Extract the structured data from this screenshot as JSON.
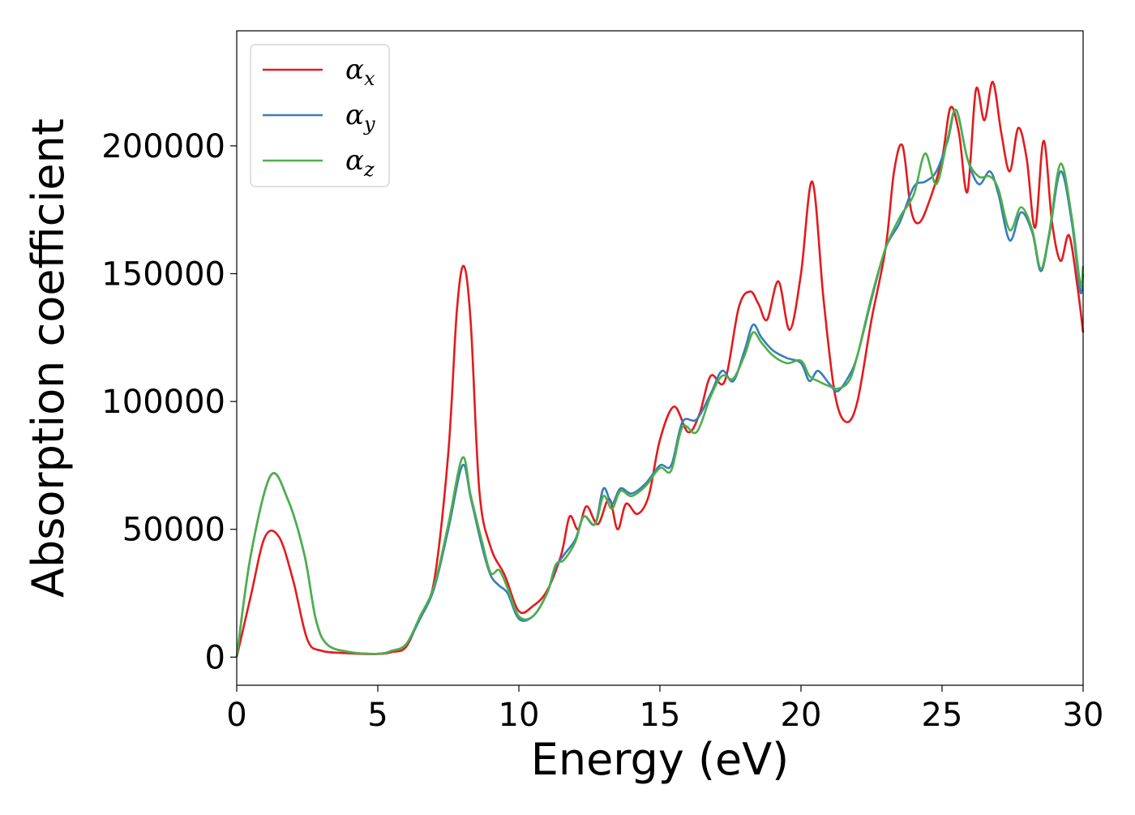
{
  "chart_data": {
    "type": "line",
    "xlabel": "Energy (eV)",
    "ylabel": "Absorption coefficient",
    "xlim": [
      0,
      30
    ],
    "ylim": [
      -11000,
      245000
    ],
    "xticks": [
      0,
      5,
      10,
      15,
      20,
      25,
      30
    ],
    "yticks": [
      0,
      50000,
      100000,
      150000,
      200000
    ],
    "grid": false,
    "legend_position": "top-left",
    "series": [
      {
        "name": "αx",
        "symbol": "α",
        "subscript": "x",
        "color": "#e41a1c",
        "points": [
          [
            0,
            0
          ],
          [
            0.5,
            24000
          ],
          [
            1,
            47000
          ],
          [
            1.5,
            47000
          ],
          [
            2,
            30000
          ],
          [
            2.5,
            7000
          ],
          [
            3,
            2500
          ],
          [
            4,
            1500
          ],
          [
            5,
            1200
          ],
          [
            5.5,
            2000
          ],
          [
            6,
            4000
          ],
          [
            6.5,
            16000
          ],
          [
            7,
            30000
          ],
          [
            7.5,
            80000
          ],
          [
            7.8,
            135000
          ],
          [
            8.05,
            153000
          ],
          [
            8.3,
            130000
          ],
          [
            8.6,
            65000
          ],
          [
            9,
            43000
          ],
          [
            9.5,
            32000
          ],
          [
            10,
            18000
          ],
          [
            10.5,
            20000
          ],
          [
            11,
            26000
          ],
          [
            11.5,
            40000
          ],
          [
            11.8,
            55000
          ],
          [
            12.1,
            50000
          ],
          [
            12.4,
            59000
          ],
          [
            12.8,
            52000
          ],
          [
            13.2,
            62000
          ],
          [
            13.5,
            50000
          ],
          [
            13.8,
            60000
          ],
          [
            14.2,
            56000
          ],
          [
            14.6,
            63000
          ],
          [
            15,
            85000
          ],
          [
            15.5,
            98000
          ],
          [
            16,
            88000
          ],
          [
            16.4,
            95000
          ],
          [
            16.8,
            110000
          ],
          [
            17.3,
            108000
          ],
          [
            17.8,
            137000
          ],
          [
            18.2,
            143000
          ],
          [
            18.5,
            138000
          ],
          [
            18.8,
            132000
          ],
          [
            19.2,
            147000
          ],
          [
            19.6,
            128000
          ],
          [
            20,
            150000
          ],
          [
            20.4,
            186000
          ],
          [
            20.8,
            140000
          ],
          [
            21.2,
            103000
          ],
          [
            21.6,
            92000
          ],
          [
            22,
            100000
          ],
          [
            22.5,
            132000
          ],
          [
            23,
            160000
          ],
          [
            23.3,
            190000
          ],
          [
            23.6,
            200000
          ],
          [
            23.9,
            175000
          ],
          [
            24.2,
            170000
          ],
          [
            24.6,
            180000
          ],
          [
            25,
            195000
          ],
          [
            25.3,
            215000
          ],
          [
            25.6,
            205000
          ],
          [
            25.9,
            182000
          ],
          [
            26.2,
            222000
          ],
          [
            26.5,
            210000
          ],
          [
            26.8,
            225000
          ],
          [
            27.1,
            205000
          ],
          [
            27.4,
            190000
          ],
          [
            27.7,
            207000
          ],
          [
            28,
            195000
          ],
          [
            28.3,
            168000
          ],
          [
            28.6,
            202000
          ],
          [
            28.9,
            170000
          ],
          [
            29.2,
            155000
          ],
          [
            29.5,
            165000
          ],
          [
            29.8,
            145000
          ],
          [
            30,
            127000
          ]
        ]
      },
      {
        "name": "αy",
        "symbol": "α",
        "subscript": "y",
        "color": "#377eb8",
        "points": [
          [
            0,
            0
          ],
          [
            0.5,
            40000
          ],
          [
            1.2,
            71000
          ],
          [
            1.8,
            62000
          ],
          [
            2.4,
            40000
          ],
          [
            2.8,
            15000
          ],
          [
            3.2,
            5000
          ],
          [
            4,
            2000
          ],
          [
            5,
            1300
          ],
          [
            5.5,
            2500
          ],
          [
            6,
            5000
          ],
          [
            6.5,
            15000
          ],
          [
            7,
            27000
          ],
          [
            7.5,
            50000
          ],
          [
            8,
            75000
          ],
          [
            8.3,
            62000
          ],
          [
            8.7,
            43000
          ],
          [
            9,
            32000
          ],
          [
            9.3,
            28000
          ],
          [
            9.6,
            25000
          ],
          [
            10,
            15000
          ],
          [
            10.5,
            16000
          ],
          [
            11,
            25000
          ],
          [
            11.3,
            35000
          ],
          [
            11.6,
            40000
          ],
          [
            12,
            46000
          ],
          [
            12.3,
            55000
          ],
          [
            12.7,
            52000
          ],
          [
            13,
            66000
          ],
          [
            13.3,
            60000
          ],
          [
            13.6,
            66000
          ],
          [
            14,
            64000
          ],
          [
            14.5,
            68000
          ],
          [
            15,
            75000
          ],
          [
            15.4,
            75000
          ],
          [
            15.8,
            92000
          ],
          [
            16.3,
            93000
          ],
          [
            16.8,
            103000
          ],
          [
            17.2,
            112000
          ],
          [
            17.6,
            108000
          ],
          [
            18,
            120000
          ],
          [
            18.3,
            130000
          ],
          [
            18.6,
            125000
          ],
          [
            19,
            120000
          ],
          [
            19.5,
            117000
          ],
          [
            20,
            115000
          ],
          [
            20.3,
            108000
          ],
          [
            20.6,
            112000
          ],
          [
            21,
            107000
          ],
          [
            21.3,
            104000
          ],
          [
            21.7,
            110000
          ],
          [
            22,
            118000
          ],
          [
            22.5,
            140000
          ],
          [
            23,
            160000
          ],
          [
            23.5,
            170000
          ],
          [
            24,
            184000
          ],
          [
            24.4,
            186000
          ],
          [
            24.8,
            190000
          ],
          [
            25.2,
            202000
          ],
          [
            25.5,
            214000
          ],
          [
            25.9,
            195000
          ],
          [
            26.3,
            185000
          ],
          [
            26.7,
            190000
          ],
          [
            27,
            181000
          ],
          [
            27.4,
            163000
          ],
          [
            27.8,
            174000
          ],
          [
            28.2,
            166000
          ],
          [
            28.5,
            151000
          ],
          [
            28.8,
            165000
          ],
          [
            29.2,
            190000
          ],
          [
            29.6,
            170000
          ],
          [
            29.9,
            143000
          ],
          [
            30,
            150000
          ]
        ]
      },
      {
        "name": "αz",
        "symbol": "α",
        "subscript": "z",
        "color": "#4daf4a",
        "points": [
          [
            0,
            0
          ],
          [
            0.5,
            40000
          ],
          [
            1.2,
            71000
          ],
          [
            1.8,
            62000
          ],
          [
            2.4,
            40000
          ],
          [
            2.8,
            15000
          ],
          [
            3.2,
            5000
          ],
          [
            4,
            2000
          ],
          [
            5,
            1300
          ],
          [
            5.5,
            2500
          ],
          [
            6,
            5000
          ],
          [
            6.5,
            16000
          ],
          [
            7,
            28000
          ],
          [
            7.5,
            52000
          ],
          [
            8,
            78000
          ],
          [
            8.3,
            63000
          ],
          [
            8.7,
            45000
          ],
          [
            9,
            33000
          ],
          [
            9.3,
            34000
          ],
          [
            9.6,
            27000
          ],
          [
            10,
            16000
          ],
          [
            10.5,
            16000
          ],
          [
            11,
            25000
          ],
          [
            11.3,
            36000
          ],
          [
            11.6,
            38000
          ],
          [
            12,
            45000
          ],
          [
            12.3,
            55000
          ],
          [
            12.7,
            52000
          ],
          [
            13,
            63000
          ],
          [
            13.3,
            58000
          ],
          [
            13.6,
            65000
          ],
          [
            14,
            63000
          ],
          [
            14.5,
            67000
          ],
          [
            15,
            74000
          ],
          [
            15.4,
            73000
          ],
          [
            15.8,
            90000
          ],
          [
            16.3,
            88000
          ],
          [
            16.8,
            102000
          ],
          [
            17.2,
            110000
          ],
          [
            17.6,
            109000
          ],
          [
            18,
            118000
          ],
          [
            18.3,
            127000
          ],
          [
            18.6,
            123000
          ],
          [
            19,
            118000
          ],
          [
            19.5,
            115000
          ],
          [
            20,
            116000
          ],
          [
            20.3,
            110000
          ],
          [
            20.6,
            108000
          ],
          [
            21,
            106000
          ],
          [
            21.3,
            105000
          ],
          [
            21.7,
            108000
          ],
          [
            22,
            118000
          ],
          [
            22.5,
            141000
          ],
          [
            23,
            160000
          ],
          [
            23.5,
            172000
          ],
          [
            24,
            181000
          ],
          [
            24.4,
            197000
          ],
          [
            24.8,
            185000
          ],
          [
            25.2,
            203000
          ],
          [
            25.5,
            214000
          ],
          [
            25.9,
            195000
          ],
          [
            26.3,
            188000
          ],
          [
            26.7,
            188000
          ],
          [
            27,
            183000
          ],
          [
            27.4,
            167000
          ],
          [
            27.8,
            176000
          ],
          [
            28.2,
            167000
          ],
          [
            28.5,
            152000
          ],
          [
            28.8,
            166000
          ],
          [
            29.2,
            193000
          ],
          [
            29.6,
            172000
          ],
          [
            29.9,
            146000
          ],
          [
            30,
            153000
          ]
        ]
      }
    ]
  }
}
